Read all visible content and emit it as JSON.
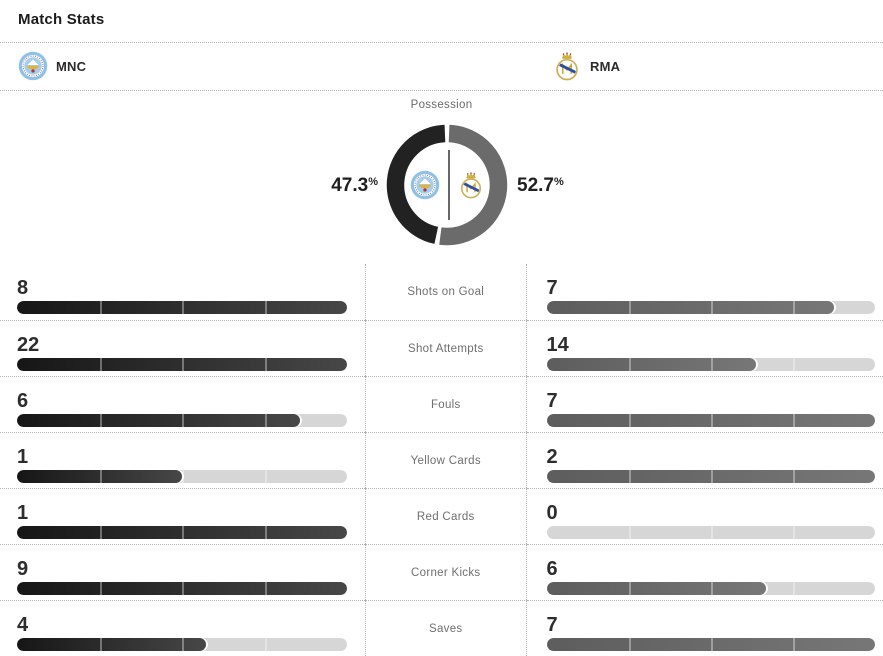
{
  "header": {
    "title": "Match Stats"
  },
  "teams": {
    "home": {
      "abbr": "MNC",
      "badge_icon": "manchester-city-crest"
    },
    "away": {
      "abbr": "RMA",
      "badge_icon": "real-madrid-crest"
    }
  },
  "possession": {
    "label": "Possession",
    "home_pct": "47.3",
    "away_pct": "52.7",
    "pct_symbol": "%"
  },
  "stats": {
    "rows": [
      {
        "label": "Shots on Goal",
        "home": 8,
        "away": 7
      },
      {
        "label": "Shot Attempts",
        "home": 22,
        "away": 14
      },
      {
        "label": "Fouls",
        "home": 6,
        "away": 7
      },
      {
        "label": "Yellow Cards",
        "home": 1,
        "away": 2
      },
      {
        "label": "Red Cards",
        "home": 1,
        "away": 0
      },
      {
        "label": "Corner Kicks",
        "home": 9,
        "away": 6
      },
      {
        "label": "Saves",
        "home": 4,
        "away": 7
      }
    ]
  },
  "colors": {
    "home_bar": "#222222",
    "away_bar": "#6b6b6b",
    "track": "#d6d6d6"
  },
  "chart_data": [
    {
      "type": "pie",
      "title": "Possession",
      "series": [
        {
          "name": "MNC",
          "value": 47.3
        },
        {
          "name": "RMA",
          "value": 52.7
        }
      ],
      "unit": "%",
      "colors": {
        "home": "#222222",
        "away": "#6b6b6b"
      },
      "legend_position": "center-badges",
      "donut": true
    },
    {
      "type": "bar",
      "title": "Match Stats",
      "categories": [
        "Shots on Goal",
        "Shot Attempts",
        "Fouls",
        "Yellow Cards",
        "Red Cards",
        "Corner Kicks",
        "Saves"
      ],
      "series": [
        {
          "name": "MNC",
          "values": [
            8,
            22,
            6,
            1,
            1,
            9,
            4
          ]
        },
        {
          "name": "RMA",
          "values": [
            7,
            14,
            7,
            2,
            0,
            6,
            7
          ]
        }
      ],
      "note": "each side's bar is filled as value / max(home, away) of its row",
      "grid": false
    }
  ]
}
